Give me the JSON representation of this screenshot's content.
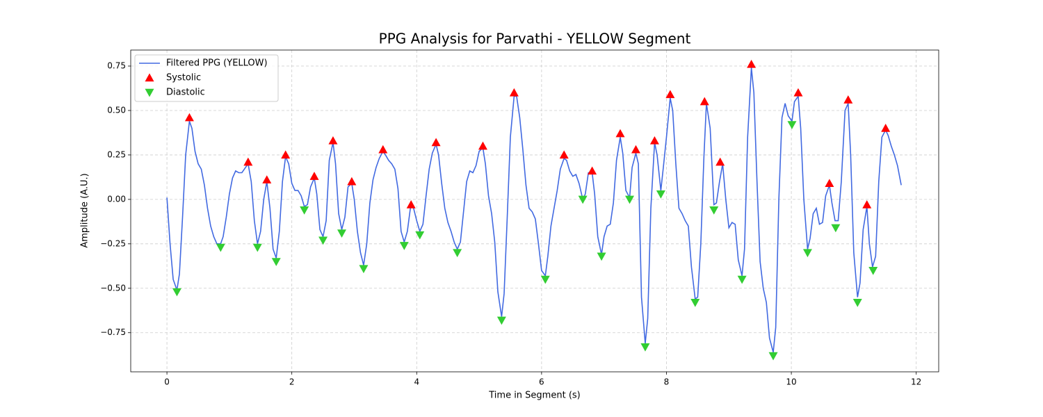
{
  "chart_data": {
    "type": "line",
    "title": "PPG Analysis for Parvathi - YELLOW Segment",
    "x_label": "Time in Segment (s)",
    "y_label": "Amplitude (A.U.)",
    "xlim": [
      -0.58,
      12.36
    ],
    "ylim": [
      -0.97,
      0.84
    ],
    "xticks": [
      0,
      2,
      4,
      6,
      8,
      10,
      12
    ],
    "yticks": [
      {
        "value": -0.75,
        "label": "−0.75"
      },
      {
        "value": -0.5,
        "label": "−0.50"
      },
      {
        "value": -0.25,
        "label": "−0.25"
      },
      {
        "value": 0,
        "label": "0.00"
      },
      {
        "value": 0.25,
        "label": "0.25"
      },
      {
        "value": 0.5,
        "label": "0.50"
      },
      {
        "value": 0.75,
        "label": "0.75"
      }
    ],
    "grid": true,
    "legend": "upper left",
    "series": [
      {
        "name": "Filtered PPG (YELLOW)",
        "color": "#4169e1",
        "type": "line",
        "x": [
          0,
          0.05,
          0.1,
          0.16,
          0.2,
          0.25,
          0.3,
          0.36,
          0.4,
          0.45,
          0.5,
          0.55,
          0.6,
          0.65,
          0.7,
          0.75,
          0.8,
          0.86,
          0.9,
          0.95,
          1.0,
          1.05,
          1.1,
          1.15,
          1.2,
          1.3,
          1.35,
          1.4,
          1.45,
          1.5,
          1.55,
          1.6,
          1.65,
          1.7,
          1.75,
          1.8,
          1.85,
          1.9,
          1.95,
          2.0,
          2.05,
          2.1,
          2.15,
          2.2,
          2.25,
          2.3,
          2.36,
          2.4,
          2.45,
          2.5,
          2.55,
          2.6,
          2.66,
          2.7,
          2.75,
          2.8,
          2.85,
          2.9,
          2.96,
          3.0,
          3.05,
          3.1,
          3.15,
          3.2,
          3.25,
          3.3,
          3.35,
          3.4,
          3.46,
          3.5,
          3.55,
          3.6,
          3.65,
          3.7,
          3.75,
          3.8,
          3.85,
          3.91,
          3.95,
          4.0,
          4.05,
          4.1,
          4.15,
          4.2,
          4.25,
          4.31,
          4.35,
          4.4,
          4.45,
          4.5,
          4.55,
          4.6,
          4.65,
          4.7,
          4.75,
          4.8,
          4.85,
          4.9,
          4.95,
          5.0,
          5.06,
          5.1,
          5.15,
          5.2,
          5.25,
          5.3,
          5.36,
          5.4,
          5.45,
          5.5,
          5.56,
          5.6,
          5.65,
          5.7,
          5.75,
          5.8,
          5.85,
          5.9,
          5.95,
          6.0,
          6.06,
          6.1,
          6.15,
          6.2,
          6.25,
          6.3,
          6.36,
          6.4,
          6.45,
          6.5,
          6.55,
          6.6,
          6.66,
          6.7,
          6.75,
          6.81,
          6.85,
          6.9,
          6.96,
          7.0,
          7.05,
          7.1,
          7.15,
          7.2,
          7.26,
          7.3,
          7.35,
          7.41,
          7.45,
          7.51,
          7.55,
          7.6,
          7.66,
          7.7,
          7.75,
          7.81,
          7.85,
          7.91,
          7.95,
          8.0,
          8.06,
          8.1,
          8.15,
          8.2,
          8.25,
          8.3,
          8.35,
          8.4,
          8.46,
          8.5,
          8.55,
          8.6,
          8.64,
          8.7,
          8.76,
          8.8,
          8.85,
          8.9,
          8.95,
          9.0,
          9.05,
          9.1,
          9.15,
          9.21,
          9.25,
          9.3,
          9.36,
          9.4,
          9.45,
          9.5,
          9.55,
          9.6,
          9.65,
          9.71,
          9.75,
          9.8,
          9.85,
          9.9,
          9.95,
          10.01,
          10.05,
          10.11,
          10.15,
          10.2,
          10.26,
          10.3,
          10.35,
          10.4,
          10.45,
          10.5,
          10.55,
          10.61,
          10.65,
          10.7,
          10.75,
          10.8,
          10.86,
          10.91,
          10.95,
          11.0,
          11.06,
          11.1,
          11.15,
          11.21,
          11.25,
          11.3,
          11.35,
          11.4,
          11.45,
          11.51,
          11.55,
          11.6,
          11.65,
          11.7,
          11.76
        ],
        "values": [
          0.01,
          -0.25,
          -0.45,
          -0.51,
          -0.42,
          -0.1,
          0.25,
          0.44,
          0.4,
          0.27,
          0.2,
          0.17,
          0.08,
          -0.05,
          -0.15,
          -0.21,
          -0.25,
          -0.25,
          -0.21,
          -0.1,
          0.03,
          0.12,
          0.16,
          0.15,
          0.15,
          0.2,
          0.1,
          -0.12,
          -0.25,
          -0.18,
          0,
          0.1,
          -0.05,
          -0.28,
          -0.33,
          -0.18,
          0.1,
          0.24,
          0.2,
          0.09,
          0.05,
          0.05,
          0.02,
          -0.04,
          -0.03,
          0.07,
          0.12,
          0.03,
          -0.17,
          -0.21,
          -0.12,
          0.22,
          0.32,
          0.2,
          -0.08,
          -0.17,
          -0.1,
          0.07,
          0.09,
          0,
          -0.18,
          -0.3,
          -0.37,
          -0.25,
          -0.02,
          0.11,
          0.18,
          0.23,
          0.27,
          0.25,
          0.22,
          0.2,
          0.17,
          0.06,
          -0.18,
          -0.24,
          -0.18,
          -0.02,
          -0.05,
          -0.12,
          -0.18,
          -0.14,
          0.02,
          0.17,
          0.26,
          0.31,
          0.25,
          0.09,
          -0.05,
          -0.13,
          -0.18,
          -0.24,
          -0.28,
          -0.24,
          -0.07,
          0.1,
          0.16,
          0.15,
          0.19,
          0.27,
          0.29,
          0.2,
          0.02,
          -0.08,
          -0.24,
          -0.52,
          -0.66,
          -0.53,
          -0.1,
          0.35,
          0.58,
          0.58,
          0.46,
          0.28,
          0.08,
          -0.05,
          -0.07,
          -0.11,
          -0.25,
          -0.4,
          -0.43,
          -0.32,
          -0.15,
          -0.05,
          0.05,
          0.17,
          0.23,
          0.22,
          0.16,
          0.13,
          0.14,
          0.09,
          0,
          0.03,
          0.15,
          0.15,
          0.03,
          -0.21,
          -0.31,
          -0.21,
          -0.15,
          -0.14,
          -0.02,
          0.22,
          0.35,
          0.26,
          0.05,
          0.01,
          0.18,
          0.26,
          0.2,
          -0.55,
          -0.81,
          -0.67,
          -0.05,
          0.32,
          0.25,
          0.05,
          0.18,
          0.35,
          0.57,
          0.5,
          0.2,
          -0.05,
          -0.08,
          -0.12,
          -0.15,
          -0.38,
          -0.56,
          -0.55,
          -0.25,
          0.24,
          0.54,
          0.4,
          -0.03,
          -0.02,
          0.1,
          0.2,
          0,
          -0.16,
          -0.13,
          -0.14,
          -0.34,
          -0.43,
          -0.28,
          0.35,
          0.74,
          0.6,
          0.1,
          -0.35,
          -0.5,
          -0.58,
          -0.78,
          -0.86,
          -0.72,
          0,
          0.46,
          0.54,
          0.47,
          0.44,
          0.55,
          0.58,
          0.4,
          0,
          -0.28,
          -0.22,
          -0.08,
          -0.05,
          -0.14,
          -0.13,
          0.02,
          0.08,
          -0.02,
          -0.12,
          -0.12,
          0.1,
          0.5,
          0.54,
          0.25,
          -0.3,
          -0.55,
          -0.47,
          -0.17,
          -0.04,
          -0.25,
          -0.38,
          -0.32,
          0.1,
          0.35,
          0.39,
          0.36,
          0.3,
          0.25,
          0.19,
          0.08
        ]
      },
      {
        "name": "Systolic",
        "color": "#ff0000",
        "type": "scatter",
        "marker": "triangle-up",
        "x": [
          0.36,
          1.3,
          1.6,
          1.9,
          2.36,
          2.66,
          2.96,
          3.46,
          3.91,
          4.31,
          5.06,
          5.56,
          6.36,
          6.81,
          7.26,
          7.51,
          7.81,
          8.06,
          8.61,
          8.86,
          9.36,
          10.11,
          10.61,
          10.91,
          11.21,
          11.51
        ],
        "values": [
          0.46,
          0.21,
          0.11,
          0.25,
          0.13,
          0.33,
          0.1,
          0.28,
          -0.03,
          0.32,
          0.3,
          0.6,
          0.25,
          0.16,
          0.37,
          0.28,
          0.33,
          0.59,
          0.55,
          0.21,
          0.76,
          0.6,
          0.09,
          0.56,
          -0.03,
          0.4
        ]
      },
      {
        "name": "Diastolic",
        "color": "#32cd32",
        "type": "scatter",
        "marker": "triangle-down",
        "x": [
          0.16,
          0.86,
          1.45,
          1.75,
          2.2,
          2.5,
          2.8,
          3.15,
          3.8,
          4.05,
          4.65,
          5.36,
          6.06,
          6.66,
          6.96,
          7.41,
          7.66,
          7.91,
          8.46,
          8.76,
          9.21,
          9.71,
          10.01,
          10.26,
          10.71,
          11.06,
          11.31
        ],
        "values": [
          -0.52,
          -0.27,
          -0.27,
          -0.35,
          -0.06,
          -0.23,
          -0.19,
          -0.39,
          -0.26,
          -0.2,
          -0.3,
          -0.68,
          -0.45,
          0,
          -0.32,
          0,
          -0.83,
          0.03,
          -0.58,
          -0.06,
          -0.45,
          -0.88,
          0.42,
          -0.3,
          -0.16,
          -0.58,
          -0.4
        ]
      }
    ]
  }
}
